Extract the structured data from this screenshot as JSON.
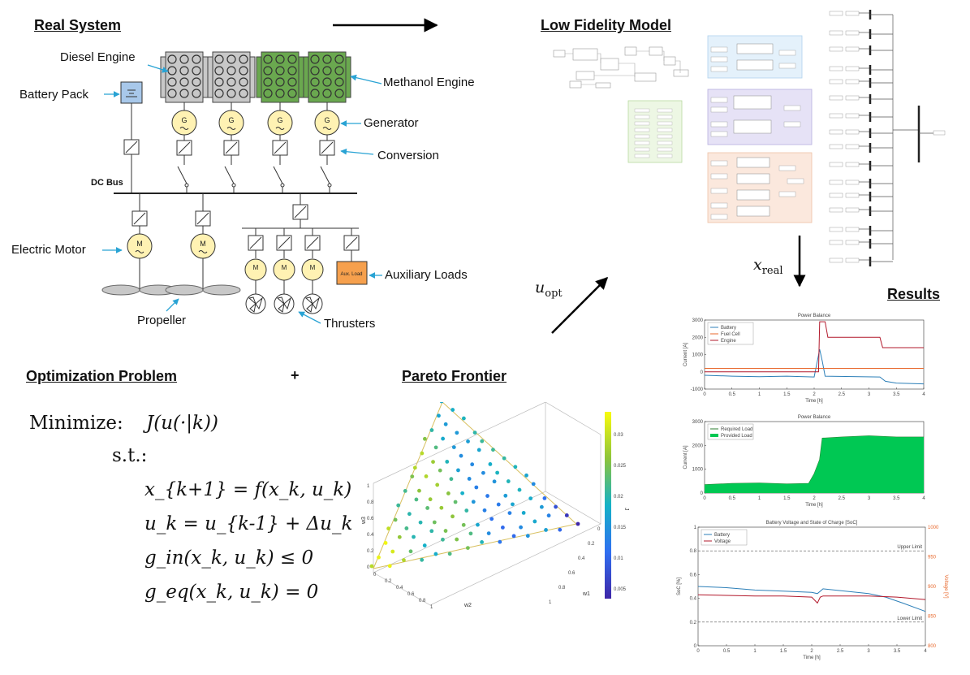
{
  "sections": {
    "real_system": "Real System",
    "low_fidelity": "Low Fidelity Model",
    "results": "Results",
    "optimization": "Optimization Problem",
    "plus": "+",
    "pareto": "Pareto Frontier"
  },
  "system": {
    "diesel_engine": "Diesel Engine",
    "battery_pack": "Battery Pack",
    "methanol_engine": "Methanol Engine",
    "generator": "Generator",
    "conversion": "Conversion",
    "dc_bus": "DC Bus",
    "electric_motor": "Electric Motor",
    "auxiliary_loads": "Auxiliary Loads",
    "aux_load_box": "Aux. Load",
    "propeller": "Propeller",
    "thrusters": "Thrusters",
    "gen_symbol": "G",
    "motor_symbol": "M"
  },
  "arrows": {
    "x_real": "x",
    "x_real_sub": "real",
    "u_opt": "u",
    "u_opt_sub": "opt"
  },
  "optimization": {
    "minimize": "Minimize:",
    "objective": "J(u(·|k))",
    "st": "s.t.:",
    "c1": "x_{k+1} = f(x_k, u_k)",
    "c2": "u_k = u_{k-1} + Δu_k",
    "c3": "g_in(x_k, u_k) ≤ 0",
    "c4": "g_eq(x_k, u_k) = 0"
  },
  "pareto_axes": {
    "w3": "w3",
    "w2": "w2",
    "w1": "w1",
    "j": "J",
    "w3_ticks": [
      "0",
      "0.2",
      "0.4",
      "0.6",
      "0.8",
      "1"
    ],
    "w2_ticks": [
      "0",
      "0.2",
      "0.4",
      "0.6",
      "0.8",
      "1"
    ],
    "w1_ticks": [
      "0",
      "0.2",
      "0.4",
      "0.6",
      "0.8",
      "1"
    ],
    "colorbar_ticks": [
      "0.03",
      "0.025",
      "0.02",
      "0.015",
      "0.01",
      "0.005"
    ]
  },
  "colors": {
    "engine_diesel": "#c8c8c8",
    "engine_methanol": "#6aa84f",
    "generator": "#fff2b3",
    "aux": "#f6a04d",
    "battery": "#a8c8ea",
    "arrow_blue": "#29a3d4"
  },
  "chart_data": [
    {
      "type": "line",
      "title": "Power Balance",
      "xlabel": "Time [h]",
      "ylabel": "Current [A]",
      "xlim": [
        0,
        4
      ],
      "ylim": [
        -1000,
        3000
      ],
      "xticks": [
        "0",
        "0.5",
        "1",
        "1.5",
        "2",
        "2.5",
        "3",
        "3.5",
        "4"
      ],
      "yticks": [
        "3000",
        "2000",
        "1000",
        "0",
        "-1000"
      ],
      "legend": "top-left",
      "series": [
        {
          "name": "Battery",
          "color": "#2c7fb8",
          "x": [
            0,
            0.5,
            1,
            1.5,
            2,
            2.1,
            2.15,
            2.2,
            3.2,
            3.3,
            3.5,
            4
          ],
          "y": [
            -200,
            -250,
            -280,
            -250,
            -300,
            1300,
            600,
            -250,
            -300,
            -550,
            -650,
            -700
          ]
        },
        {
          "name": "Fuel Cell",
          "color": "#e8692d",
          "x": [
            0,
            4
          ],
          "y": [
            200,
            200
          ]
        },
        {
          "name": "Engine",
          "color": "#b2182b",
          "x": [
            0,
            2.08,
            2.1,
            2.2,
            2.25,
            3.2,
            3.25,
            4
          ],
          "y": [
            0,
            0,
            2900,
            2900,
            2000,
            2000,
            1400,
            1400
          ]
        }
      ]
    },
    {
      "type": "area",
      "title": "Power Balance",
      "xlabel": "Time [h]",
      "ylabel": "Current [A]",
      "xlim": [
        0,
        4
      ],
      "ylim": [
        0,
        3000
      ],
      "xticks": [
        "0",
        "0.5",
        "1",
        "1.5",
        "2",
        "2.5",
        "3",
        "3.5",
        "4"
      ],
      "yticks": [
        "3000",
        "2000",
        "1000",
        "0"
      ],
      "legend": "top-left",
      "series": [
        {
          "name": "Required Load",
          "color": "#2e7d32",
          "x": [
            0,
            0.5,
            1,
            1.5,
            1.9,
            2.0,
            2.1,
            2.15,
            2.5,
            3,
            3.5,
            4
          ],
          "y": [
            350,
            400,
            420,
            380,
            400,
            800,
            1400,
            2300,
            2350,
            2400,
            2350,
            2350
          ]
        },
        {
          "name": "Provided Load",
          "color": "#00c853",
          "x": [
            0,
            0.5,
            1,
            1.5,
            1.9,
            2.0,
            2.1,
            2.15,
            2.5,
            3,
            3.5,
            4
          ],
          "y": [
            350,
            400,
            420,
            380,
            400,
            800,
            1400,
            2300,
            2350,
            2400,
            2350,
            2350
          ]
        }
      ]
    },
    {
      "type": "line",
      "title": "Battery Voltage and State of Charge [SoC]",
      "xlabel": "Time [h]",
      "ylabel": "SoC [%]",
      "ylabel_right": "Voltage [V]",
      "xlim": [
        0,
        4
      ],
      "ylim": [
        0,
        1
      ],
      "ylim_right": [
        800,
        1000
      ],
      "xticks": [
        "0",
        "0.5",
        "1",
        "1.5",
        "2",
        "2.5",
        "3",
        "3.5",
        "4"
      ],
      "yticks": [
        "1",
        "0.8",
        "0.6",
        "0.4",
        "0.2",
        "0"
      ],
      "yticks_right": [
        "1000",
        "950",
        "900",
        "850",
        "800"
      ],
      "legend": "top-left",
      "annotations": [
        {
          "text": "Upper Limit",
          "y": 0.8
        },
        {
          "text": "Lower Limit",
          "y": 0.2
        }
      ],
      "series": [
        {
          "name": "Battery",
          "color": "#2c7fb8",
          "x": [
            0,
            0.5,
            1,
            1.5,
            2,
            2.1,
            2.2,
            3,
            3.3,
            3.6,
            4
          ],
          "y": [
            0.5,
            0.49,
            0.47,
            0.46,
            0.45,
            0.44,
            0.48,
            0.44,
            0.41,
            0.36,
            0.29
          ]
        },
        {
          "name": "Voltage",
          "color": "#b2182b",
          "x": [
            0,
            0.5,
            1,
            1.5,
            2,
            2.1,
            2.15,
            2.2,
            3,
            3.5,
            4
          ],
          "y": [
            0.43,
            0.425,
            0.42,
            0.42,
            0.41,
            0.36,
            0.41,
            0.42,
            0.42,
            0.41,
            0.39
          ]
        }
      ]
    }
  ]
}
